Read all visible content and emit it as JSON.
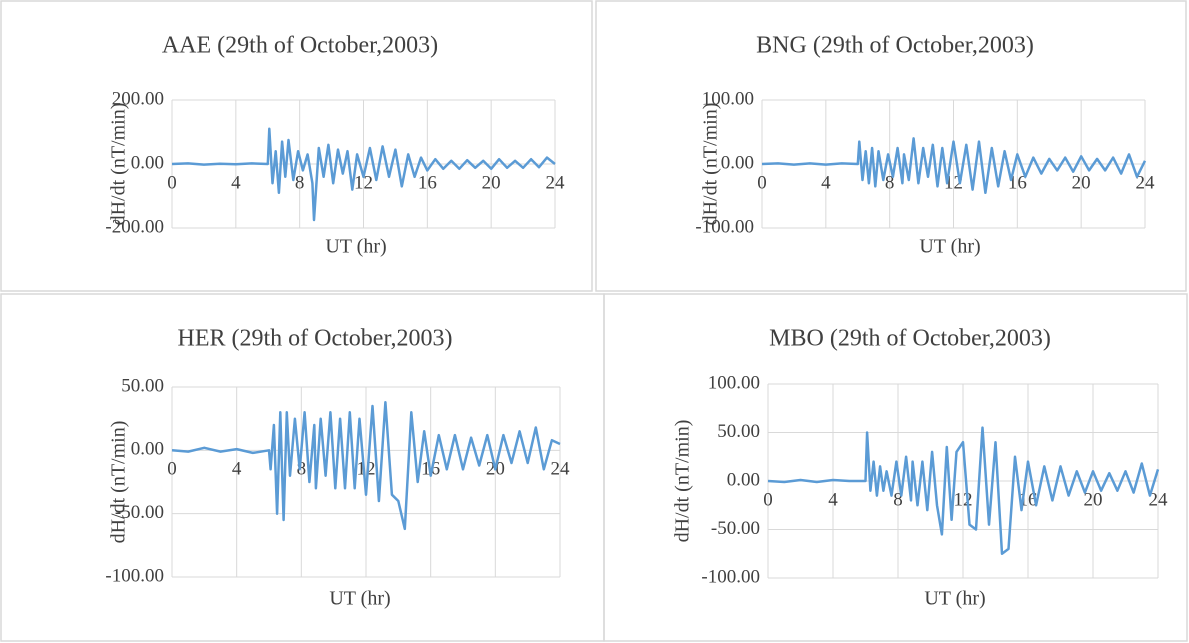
{
  "chart_data": [
    {
      "type": "line",
      "title": "AAE (29th of October,2003)",
      "x_label": "UT (hr)",
      "y_label": "dH/dt (nT/min)",
      "x": [
        0,
        1,
        2,
        3,
        4,
        5,
        6,
        6.1,
        6.3,
        6.5,
        6.7,
        6.9,
        7.1,
        7.3,
        7.6,
        7.9,
        8.2,
        8.5,
        8.8,
        8.9,
        9.2,
        9.5,
        9.8,
        10.1,
        10.4,
        10.7,
        11,
        11.3,
        11.6,
        12,
        12.4,
        12.8,
        13.2,
        13.6,
        14,
        14.4,
        14.8,
        15.2,
        15.6,
        16,
        16.5,
        17,
        17.5,
        18,
        18.5,
        19,
        19.5,
        20,
        20.5,
        21,
        21.5,
        22,
        22.5,
        23,
        23.5,
        24
      ],
      "values": [
        0,
        2,
        -2,
        1,
        -1,
        2,
        0,
        110,
        -60,
        40,
        -90,
        70,
        -40,
        75,
        -50,
        40,
        -20,
        30,
        -60,
        -175,
        50,
        -40,
        60,
        -60,
        45,
        -30,
        40,
        -80,
        30,
        -40,
        50,
        -50,
        55,
        -40,
        45,
        -70,
        30,
        -40,
        20,
        -20,
        15,
        -15,
        10,
        -15,
        12,
        -12,
        10,
        -15,
        15,
        -12,
        10,
        -12,
        15,
        -10,
        20,
        0
      ],
      "color": "#5b9bd5",
      "xlim": [
        0,
        24
      ],
      "xticks": [
        0,
        4,
        8,
        12,
        16,
        20,
        24
      ],
      "ylim": [
        -200,
        200
      ],
      "yticks": [
        {
          "value": -200,
          "label": "-200.00"
        },
        {
          "value": 0,
          "label": "0.00"
        },
        {
          "value": 200,
          "label": "200.00"
        }
      ],
      "grid": true
    },
    {
      "type": "line",
      "title": "BNG (29th of October,2003)",
      "x_label": "UT (hr)",
      "y_label": "dH/dt (nT/min)",
      "x": [
        0,
        1,
        2,
        3,
        4,
        5,
        6,
        6.1,
        6.3,
        6.5,
        6.7,
        6.9,
        7.1,
        7.3,
        7.6,
        7.9,
        8.2,
        8.5,
        8.8,
        8.9,
        9.2,
        9.5,
        9.8,
        10.1,
        10.4,
        10.7,
        11,
        11.3,
        11.6,
        12,
        12.4,
        12.8,
        13.2,
        13.6,
        14,
        14.4,
        14.8,
        15.2,
        15.6,
        16,
        16.5,
        17,
        17.5,
        18,
        18.5,
        19,
        19.5,
        20,
        20.5,
        21,
        21.5,
        22,
        22.5,
        23,
        23.5,
        24
      ],
      "values": [
        0,
        1,
        -1,
        1,
        -1,
        1,
        0,
        35,
        -25,
        20,
        -30,
        25,
        -35,
        20,
        -25,
        15,
        -20,
        25,
        -30,
        15,
        -25,
        40,
        -30,
        25,
        -20,
        30,
        -35,
        25,
        -30,
        35,
        -30,
        30,
        -40,
        35,
        -45,
        25,
        -35,
        20,
        -25,
        15,
        -20,
        10,
        -15,
        8,
        -10,
        10,
        -12,
        12,
        -10,
        8,
        -10,
        10,
        -15,
        15,
        -20,
        5
      ],
      "color": "#5b9bd5",
      "xlim": [
        0,
        24
      ],
      "xticks": [
        0,
        4,
        8,
        12,
        16,
        20,
        24
      ],
      "ylim": [
        -100,
        100
      ],
      "yticks": [
        {
          "value": -100,
          "label": "-100.00"
        },
        {
          "value": 0,
          "label": "0.00"
        },
        {
          "value": 100,
          "label": "100.00"
        }
      ],
      "grid": true
    },
    {
      "type": "line",
      "title": "HER (29th of October,2003)",
      "x_label": "UT (hr)",
      "y_label": "dH/dt (nT/min)",
      "x": [
        0,
        1,
        2,
        3,
        4,
        5,
        6,
        6.1,
        6.3,
        6.5,
        6.7,
        6.9,
        7.1,
        7.3,
        7.6,
        7.9,
        8.2,
        8.5,
        8.8,
        8.9,
        9.2,
        9.5,
        9.8,
        10.1,
        10.4,
        10.7,
        11,
        11.3,
        11.6,
        12,
        12.4,
        12.8,
        13.2,
        13.6,
        14,
        14.4,
        14.8,
        15.2,
        15.6,
        16,
        16.5,
        17,
        17.5,
        18,
        18.5,
        19,
        19.5,
        20,
        20.5,
        21,
        21.5,
        22,
        22.5,
        23,
        23.5,
        24
      ],
      "values": [
        0,
        -1,
        2,
        -1,
        1,
        -2,
        0,
        -15,
        20,
        -50,
        30,
        -55,
        30,
        -20,
        25,
        -15,
        30,
        -25,
        20,
        -30,
        25,
        -20,
        30,
        -30,
        25,
        -30,
        30,
        -30,
        25,
        -35,
        35,
        -40,
        38,
        -35,
        -40,
        -62,
        30,
        -25,
        15,
        -20,
        12,
        -15,
        12,
        -15,
        10,
        -12,
        12,
        -15,
        12,
        -10,
        15,
        -10,
        18,
        -15,
        8,
        5
      ],
      "color": "#5b9bd5",
      "xlim": [
        0,
        24
      ],
      "xticks": [
        0,
        4,
        8,
        12,
        16,
        20,
        24
      ],
      "ylim": [
        -100,
        50
      ],
      "yticks": [
        {
          "value": -100,
          "label": "-100.00"
        },
        {
          "value": -50,
          "label": "-50.00"
        },
        {
          "value": 0,
          "label": "0.00"
        },
        {
          "value": 50,
          "label": "50.00"
        }
      ],
      "grid": true
    },
    {
      "type": "line",
      "title": "MBO (29th of October,2003)",
      "x_label": "UT (hr)",
      "y_label": "dH/dt (nT/min)",
      "x": [
        0,
        1,
        2,
        3,
        4,
        5,
        6,
        6.1,
        6.3,
        6.5,
        6.7,
        6.9,
        7.1,
        7.3,
        7.6,
        7.9,
        8.2,
        8.5,
        8.8,
        8.9,
        9.2,
        9.5,
        9.8,
        10.1,
        10.4,
        10.7,
        11,
        11.3,
        11.6,
        12,
        12.4,
        12.8,
        13.2,
        13.6,
        14,
        14.4,
        14.8,
        15.2,
        15.6,
        16,
        16.5,
        17,
        17.5,
        18,
        18.5,
        19,
        19.5,
        20,
        20.5,
        21,
        21.5,
        22,
        22.5,
        23,
        23.5,
        24
      ],
      "values": [
        0,
        -1,
        1,
        -1,
        1,
        0,
        0,
        50,
        -10,
        20,
        -15,
        15,
        -10,
        10,
        -15,
        20,
        -15,
        25,
        -20,
        20,
        -25,
        20,
        -30,
        30,
        -25,
        -55,
        35,
        -40,
        30,
        40,
        -45,
        -50,
        55,
        -45,
        40,
        -75,
        -70,
        25,
        -30,
        20,
        -25,
        15,
        -20,
        15,
        -15,
        10,
        -12,
        10,
        -10,
        8,
        -10,
        10,
        -12,
        18,
        -15,
        12
      ],
      "color": "#5b9bd5",
      "xlim": [
        0,
        24
      ],
      "xticks": [
        0,
        4,
        8,
        12,
        16,
        20,
        24
      ],
      "ylim": [
        -100,
        100
      ],
      "yticks": [
        {
          "value": -100,
          "label": "-100.00"
        },
        {
          "value": -50,
          "label": "-50.00"
        },
        {
          "value": 0,
          "label": "0.00"
        },
        {
          "value": 50,
          "label": "50.00"
        },
        {
          "value": 100,
          "label": "100.00"
        }
      ],
      "grid": true
    }
  ]
}
